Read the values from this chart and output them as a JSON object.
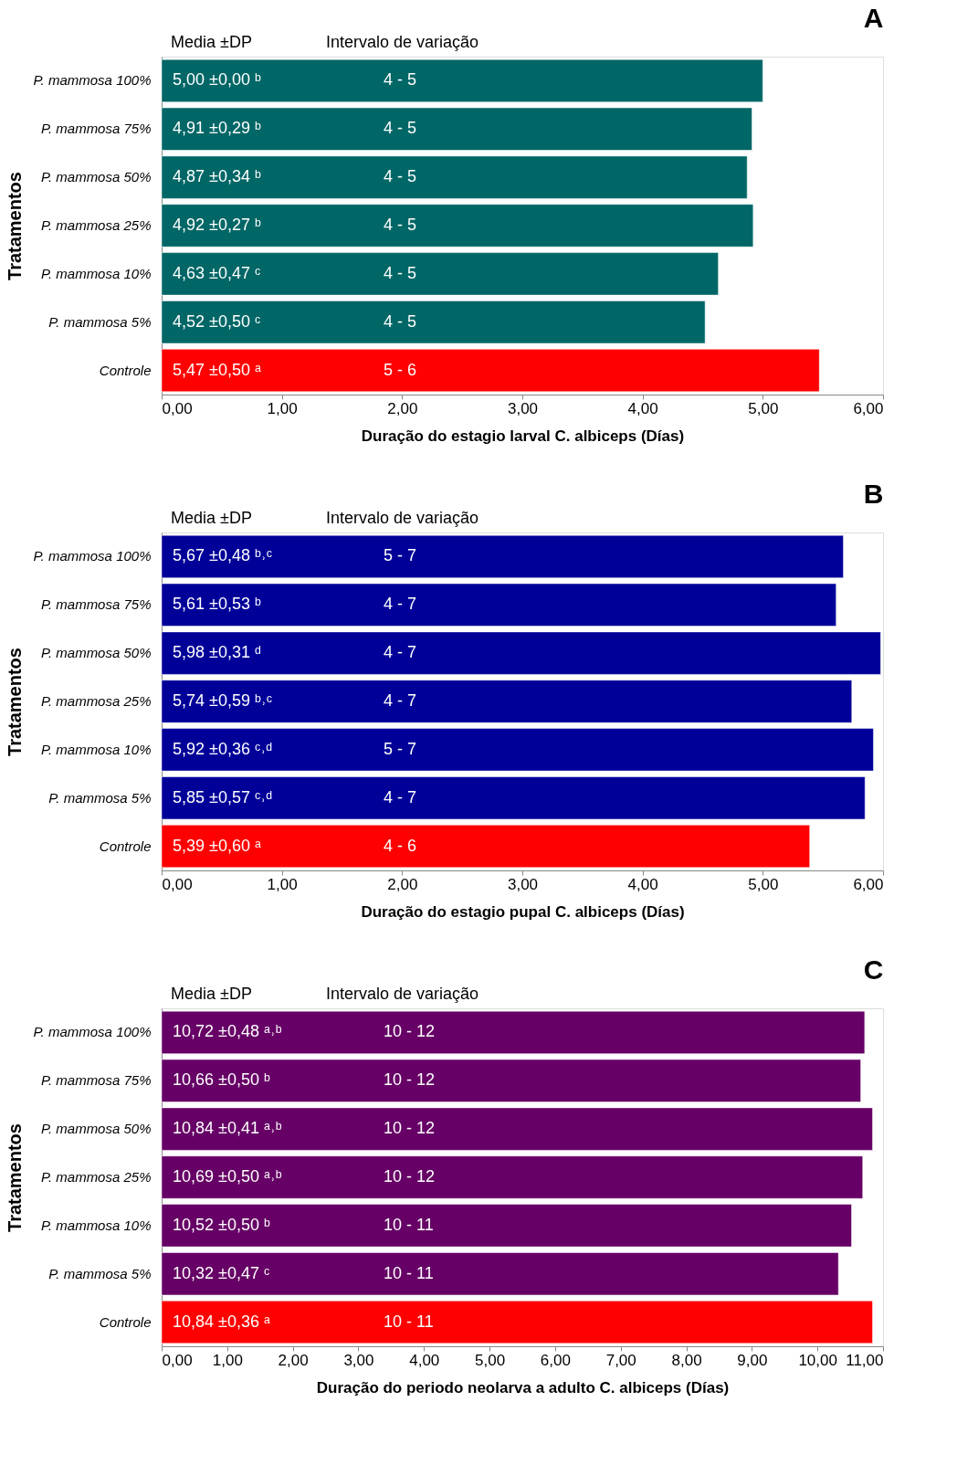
{
  "chart_data": [
    {
      "type": "bar",
      "orientation": "horizontal",
      "title": "A",
      "ylabel": "Tratamentos",
      "xlabel": "Duração do estagio larval C. albiceps (Días)",
      "categories": [
        "P. mammosa 100%",
        "P. mammosa 75%",
        "P. mammosa 50%",
        "P. mammosa 25%",
        "P. mammosa 10%",
        "P. mammosa 5%",
        "Controle"
      ],
      "values": [
        5.0,
        4.91,
        4.87,
        4.92,
        4.63,
        4.52,
        5.47
      ],
      "colors": [
        "#006666",
        "#006666",
        "#006666",
        "#006666",
        "#006666",
        "#006666",
        "#ff0000"
      ],
      "value_labels": [
        "5,00 ±0,00 ᵇ",
        "4,91 ±0,29 ᵇ",
        "4,87 ±0,34 ᵇ",
        "4,92 ±0,27 ᵇ",
        "4,63 ±0,47 ᶜ",
        "4,52 ±0,50 ᶜ",
        "5,47 ±0,50 ᵃ"
      ],
      "xlim": [
        0,
        6
      ],
      "xticks": [
        {
          "value": 0,
          "label": "0,00"
        },
        {
          "value": 1,
          "label": "1,00"
        },
        {
          "value": 2,
          "label": "2,00"
        },
        {
          "value": 3,
          "label": "3,00"
        },
        {
          "value": 4,
          "label": "4,00"
        },
        {
          "value": 5,
          "label": "5,00"
        },
        {
          "value": 6,
          "label": "6,00"
        }
      ],
      "annotations": [
        "Media ±DP",
        "Intervalo  de variação",
        {
          "text": "4 - 5",
          "y": "P. mammosa 100%"
        },
        {
          "text": "4 - 5",
          "y": "P. mammosa 75%"
        },
        {
          "text": "4 - 5",
          "y": "P. mammosa 50%"
        },
        {
          "text": "4 - 5",
          "y": "P. mammosa 25%"
        },
        {
          "text": "4 - 5",
          "y": "P. mammosa 10%"
        },
        {
          "text": "4 - 5",
          "y": "P. mammosa 5%"
        },
        {
          "text": "5 - 6",
          "y": "Controle"
        }
      ]
    },
    {
      "type": "bar",
      "orientation": "horizontal",
      "title": "B",
      "ylabel": "Tratamentos",
      "xlabel": "Duração do estagio pupal C. albiceps (Días)",
      "categories": [
        "P. mammosa 100%",
        "P. mammosa 75%",
        "P. mammosa 50%",
        "P. mammosa 25%",
        "P. mammosa 10%",
        "P. mammosa 5%",
        "Controle"
      ],
      "values": [
        5.67,
        5.61,
        5.98,
        5.74,
        5.92,
        5.85,
        5.39
      ],
      "colors": [
        "#000099",
        "#000099",
        "#000099",
        "#000099",
        "#000099",
        "#000099",
        "#ff0000"
      ],
      "value_labels": [
        "5,67  ±0,48 ᵇ˒ᶜ",
        "5,61  ±0,53 ᵇ",
        "5,98  ±0,31 ᵈ",
        "5,74  ±0,59 ᵇ˒ᶜ",
        "5,92  ±0,36 ᶜ˒ᵈ",
        "5,85  ±0,57 ᶜ˒ᵈ",
        "5,39  ±0,60 ᵃ"
      ],
      "xlim": [
        0,
        6
      ],
      "xticks": [
        {
          "value": 0,
          "label": "0,00"
        },
        {
          "value": 1,
          "label": "1,00"
        },
        {
          "value": 2,
          "label": "2,00"
        },
        {
          "value": 3,
          "label": "3,00"
        },
        {
          "value": 4,
          "label": "4,00"
        },
        {
          "value": 5,
          "label": "5,00"
        },
        {
          "value": 6,
          "label": "6,00"
        }
      ],
      "annotations": [
        "Media ±DP",
        "Intervalo  de variação",
        {
          "text": "5 - 7",
          "y": "P. mammosa 100%"
        },
        {
          "text": "4 - 7",
          "y": "P. mammosa 75%"
        },
        {
          "text": "4 - 7",
          "y": "P. mammosa 50%"
        },
        {
          "text": "4 - 7",
          "y": "P. mammosa 25%"
        },
        {
          "text": "5 - 7",
          "y": "P. mammosa 10%"
        },
        {
          "text": "4 - 7",
          "y": "P. mammosa 5%"
        },
        {
          "text": "4 - 6",
          "y": "Controle"
        }
      ]
    },
    {
      "type": "bar",
      "orientation": "horizontal",
      "title": "C",
      "ylabel": "Tratamentos",
      "xlabel": "Duração do periodo neolarva a adulto C. albiceps (Días)",
      "categories": [
        "P. mammosa 100%",
        "P. mammosa 75%",
        "P. mammosa 50%",
        "P. mammosa 25%",
        "P. mammosa 10%",
        "P. mammosa 5%",
        "Controle"
      ],
      "values": [
        10.72,
        10.66,
        10.84,
        10.69,
        10.52,
        10.32,
        10.84
      ],
      "colors": [
        "#660066",
        "#660066",
        "#660066",
        "#660066",
        "#660066",
        "#660066",
        "#ff0000"
      ],
      "value_labels": [
        "10,72  ±0,48 ᵃ˒ᵇ",
        "10,66  ±0,50 ᵇ",
        "10,84  ±0,41 ᵃ˒ᵇ",
        "10,69  ±0,50 ᵃ˒ᵇ",
        "10,52  ±0,50 ᵇ",
        "10,32  ±0,47 ᶜ",
        "10,84  ±0,36 ᵃ"
      ],
      "xlim": [
        0,
        11
      ],
      "xticks": [
        {
          "value": 0,
          "label": "0,00"
        },
        {
          "value": 1,
          "label": "1,00"
        },
        {
          "value": 2,
          "label": "2,00"
        },
        {
          "value": 3,
          "label": "3,00"
        },
        {
          "value": 4,
          "label": "4,00"
        },
        {
          "value": 5,
          "label": "5,00"
        },
        {
          "value": 6,
          "label": "6,00"
        },
        {
          "value": 7,
          "label": "7,00"
        },
        {
          "value": 8,
          "label": "8,00"
        },
        {
          "value": 9,
          "label": "9,00"
        },
        {
          "value": 10,
          "label": "10,00"
        },
        {
          "value": 11,
          "label": "11,00"
        }
      ],
      "annotations": [
        "Media ±DP",
        "Intervalo  de variação",
        {
          "text": "10 - 12",
          "y": "P. mammosa 100%"
        },
        {
          "text": "10 - 12",
          "y": "P. mammosa 75%"
        },
        {
          "text": "10 - 12",
          "y": "P. mammosa 50%"
        },
        {
          "text": "10 - 12",
          "y": "P. mammosa 25%"
        },
        {
          "text": "10 - 11",
          "y": "P. mammosa 10%"
        },
        {
          "text": "10 - 11",
          "y": "P. mammosa 5%"
        },
        {
          "text": "10 - 11",
          "y": "Controle"
        }
      ]
    }
  ]
}
